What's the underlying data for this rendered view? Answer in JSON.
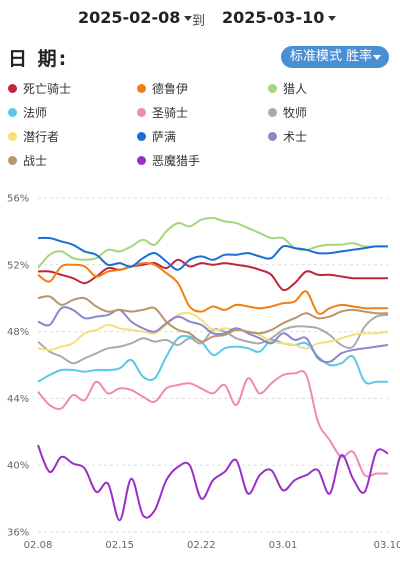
{
  "header": {
    "date_from": "2025-02-08",
    "date_separator": "到",
    "date_to": "2025-03-10",
    "date_label": "日 期:",
    "mode_label": "标准模式 胜率"
  },
  "chart_data": {
    "type": "line",
    "ylim": [
      36,
      56
    ],
    "yticks": [
      "56%",
      "52%",
      "48%",
      "44%",
      "40%",
      "36%"
    ],
    "x_dates": [
      "02.08",
      "02.09",
      "02.10",
      "02.11",
      "02.12",
      "02.13",
      "02.14",
      "02.15",
      "02.16",
      "02.17",
      "02.18",
      "02.19",
      "02.20",
      "02.21",
      "02.22",
      "02.23",
      "02.24",
      "02.25",
      "02.26",
      "02.27",
      "02.28",
      "03.01",
      "03.02",
      "03.03",
      "03.04",
      "03.05",
      "03.06",
      "03.07",
      "03.08",
      "03.09",
      "03.10"
    ],
    "x_tick_labels": [
      "02.08",
      "02.15",
      "02.22",
      "03.01",
      "03.10"
    ],
    "legend_placement": "top",
    "series": [
      {
        "name": "死亡骑士",
        "color": "#c0253a",
        "values": [
          51.6,
          51.6,
          51.4,
          51.2,
          50.9,
          51.3,
          51.8,
          51.7,
          51.9,
          52.0,
          52.1,
          51.8,
          52.3,
          51.9,
          52.1,
          52.0,
          52.1,
          52.0,
          51.9,
          51.7,
          51.4,
          50.5,
          50.9,
          51.6,
          51.4,
          51.4,
          51.3,
          51.2,
          51.2,
          51.2,
          51.2
        ]
      },
      {
        "name": "德鲁伊",
        "color": "#f07f12",
        "values": [
          51.4,
          51.0,
          51.9,
          52.0,
          51.9,
          51.3,
          51.6,
          51.7,
          51.9,
          52.1,
          52.0,
          51.5,
          50.9,
          49.5,
          49.2,
          49.5,
          49.3,
          49.6,
          49.5,
          49.4,
          49.5,
          49.7,
          49.8,
          50.4,
          49.1,
          49.4,
          49.6,
          49.5,
          49.4,
          49.4,
          49.4
        ]
      },
      {
        "name": "猎人",
        "color": "#a4d67c",
        "values": [
          51.8,
          52.6,
          52.8,
          52.4,
          52.3,
          52.4,
          52.9,
          52.8,
          53.1,
          53.5,
          53.2,
          54.0,
          54.5,
          54.3,
          54.7,
          54.8,
          54.6,
          54.5,
          54.2,
          53.9,
          53.6,
          53.6,
          53.0,
          52.9,
          53.1,
          53.2,
          53.2,
          53.3,
          53.1,
          53.1,
          53.1
        ]
      },
      {
        "name": "法师",
        "color": "#5bc8e8",
        "values": [
          45.0,
          45.4,
          45.7,
          45.7,
          45.6,
          45.7,
          45.7,
          45.8,
          46.3,
          45.3,
          45.2,
          46.5,
          47.6,
          47.7,
          47.4,
          46.6,
          47.0,
          47.1,
          47.0,
          46.8,
          47.5,
          47.3,
          47.2,
          47.3,
          46.5,
          46.0,
          46.1,
          46.5,
          45.0,
          45.0,
          45.0
        ]
      },
      {
        "name": "圣骑士",
        "color": "#f089b4",
        "values": [
          44.4,
          43.6,
          43.4,
          44.2,
          43.9,
          45.0,
          44.3,
          44.6,
          44.5,
          44.1,
          43.8,
          44.6,
          44.8,
          44.9,
          44.6,
          44.3,
          44.8,
          43.6,
          45.2,
          44.3,
          44.9,
          45.4,
          45.5,
          45.4,
          42.6,
          41.5,
          40.5,
          40.8,
          39.4,
          39.5,
          39.5
        ]
      },
      {
        "name": "牧师",
        "color": "#aaaaaa",
        "values": [
          47.4,
          46.8,
          46.5,
          46.1,
          46.4,
          46.7,
          47.0,
          47.1,
          47.3,
          47.6,
          47.4,
          47.5,
          47.2,
          47.6,
          47.3,
          48.1,
          48.0,
          47.6,
          47.4,
          47.3,
          47.6,
          48.1,
          48.3,
          48.3,
          48.2,
          47.8,
          47.2,
          47.1,
          48.3,
          48.9,
          49.0
        ]
      },
      {
        "name": "潜行者",
        "color": "#f5df7a",
        "values": [
          47.0,
          46.9,
          47.1,
          47.3,
          47.9,
          48.1,
          48.4,
          48.2,
          48.1,
          48.0,
          47.9,
          48.4,
          49.0,
          49.1,
          48.7,
          48.1,
          48.2,
          48.1,
          48.0,
          47.8,
          47.4,
          47.3,
          47.2,
          47.0,
          47.3,
          47.4,
          47.6,
          47.8,
          47.9,
          47.9,
          48.0
        ]
      },
      {
        "name": "萨满",
        "color": "#1a6fd6",
        "values": [
          53.6,
          53.6,
          53.4,
          53.2,
          52.8,
          52.6,
          52.0,
          52.1,
          51.9,
          52.4,
          52.7,
          52.2,
          51.7,
          52.3,
          52.5,
          52.3,
          52.6,
          52.6,
          52.7,
          52.5,
          52.4,
          53.1,
          53.0,
          52.9,
          52.7,
          52.7,
          52.8,
          52.9,
          53.0,
          53.1,
          53.1
        ]
      },
      {
        "name": "术士",
        "color": "#8c86cc",
        "values": [
          48.6,
          48.4,
          49.4,
          49.3,
          48.8,
          48.9,
          49.0,
          49.3,
          48.6,
          48.2,
          48.0,
          48.5,
          48.9,
          48.6,
          48.4,
          47.9,
          47.9,
          48.2,
          47.9,
          47.6,
          47.3,
          47.9,
          47.5,
          47.6,
          46.4,
          46.2,
          46.7,
          46.9,
          47.0,
          47.1,
          47.2
        ]
      },
      {
        "name": "战士",
        "color": "#b8956b",
        "values": [
          50.0,
          50.1,
          49.6,
          49.9,
          50.0,
          49.5,
          49.2,
          49.3,
          49.2,
          49.3,
          49.4,
          48.6,
          48.1,
          47.9,
          47.4,
          47.7,
          47.8,
          48.1,
          48.0,
          47.9,
          48.1,
          48.5,
          48.8,
          49.1,
          48.8,
          48.9,
          49.2,
          49.3,
          49.2,
          49.1,
          49.1
        ]
      },
      {
        "name": "恶魔猎手",
        "color": "#9a2fc8",
        "values": [
          41.2,
          39.6,
          40.5,
          40.1,
          39.8,
          38.4,
          38.9,
          36.7,
          39.2,
          37.0,
          37.3,
          39.1,
          39.9,
          40.0,
          38.0,
          39.1,
          39.6,
          40.3,
          38.3,
          39.4,
          39.7,
          38.5,
          39.1,
          39.4,
          39.7,
          38.3,
          40.6,
          39.2,
          38.4,
          40.8,
          40.7
        ]
      }
    ]
  }
}
